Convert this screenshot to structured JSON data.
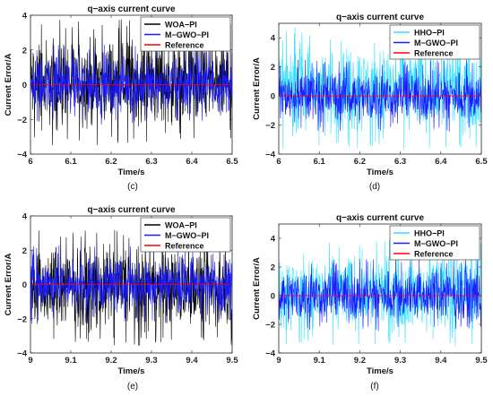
{
  "colors": {
    "woa": "#000000",
    "mgwo": "#1a1aff",
    "hho": "#33e0ff",
    "reference": "#ff0000",
    "axis": "#262626"
  },
  "chart_data": [
    {
      "type": "line",
      "panel_label": "(c)",
      "title": "q−axis current curve",
      "xlabel": "Time/s",
      "ylabel": "Current Error/A",
      "xlim": [
        6,
        6.5
      ],
      "ylim": [
        -4,
        4
      ],
      "xticks": [
        "6",
        "6.1",
        "6.2",
        "6.3",
        "6.4",
        "6.5"
      ],
      "yticks": [
        "−4",
        "−2",
        "0",
        "2",
        "4"
      ],
      "legend_position": "top-right",
      "series": [
        {
          "name": "WOA−PI",
          "color": "woa",
          "band": [
            -3.5,
            3.8
          ]
        },
        {
          "name": "M−GWO−PI",
          "color": "mgwo",
          "band": [
            -2.3,
            2.3
          ]
        },
        {
          "name": "Reference",
          "color": "reference",
          "value": 0
        }
      ]
    },
    {
      "type": "line",
      "panel_label": "(d)",
      "title": "q−axis current curve",
      "xlabel": "Time/s",
      "ylabel": "Current Error/A",
      "xlim": [
        6,
        6.5
      ],
      "ylim": [
        -4,
        5
      ],
      "xticks": [
        "6",
        "6.1",
        "6.2",
        "6.3",
        "6.4",
        "6.5"
      ],
      "yticks": [
        "−4",
        "−2",
        "0",
        "2",
        "4"
      ],
      "legend_position": "top-right",
      "series": [
        {
          "name": "HHO−PI",
          "color": "hho",
          "band": [
            -3.7,
            4.8
          ]
        },
        {
          "name": "M−GWO−PI",
          "color": "mgwo",
          "band": [
            -2.5,
            2.5
          ]
        },
        {
          "name": "Reference",
          "color": "reference",
          "value": 0
        }
      ]
    },
    {
      "type": "line",
      "panel_label": "(e)",
      "title": "q−axis current curve",
      "xlabel": "Time/s",
      "ylabel": "Current Error/A",
      "xlim": [
        9,
        9.5
      ],
      "ylim": [
        -4,
        4
      ],
      "xticks": [
        "9",
        "9.1",
        "9.2",
        "9.3",
        "9.4",
        "9.5"
      ],
      "yticks": [
        "−4",
        "−2",
        "0",
        "2",
        "4"
      ],
      "legend_position": "top-right",
      "series": [
        {
          "name": "WOA−PI",
          "color": "woa",
          "band": [
            -3.6,
            3.2
          ]
        },
        {
          "name": "M−GWO−PI",
          "color": "mgwo",
          "band": [
            -2.3,
            2.3
          ]
        },
        {
          "name": "Reference",
          "color": "reference",
          "value": 0
        }
      ]
    },
    {
      "type": "line",
      "panel_label": "(f)",
      "title": "q−axis current curve",
      "xlabel": "Time/s",
      "ylabel": "Current Error/A",
      "xlim": [
        9,
        9.5
      ],
      "ylim": [
        -4,
        5
      ],
      "xticks": [
        "9",
        "9.1",
        "9.2",
        "9.3",
        "9.4",
        "9.5"
      ],
      "yticks": [
        "−4",
        "−2",
        "0",
        "2",
        "4"
      ],
      "legend_position": "top-right",
      "series": [
        {
          "name": "HHO−PI",
          "color": "hho",
          "band": [
            -3.5,
            3.9
          ]
        },
        {
          "name": "M−GWO−PI",
          "color": "mgwo",
          "band": [
            -2.5,
            2.6
          ]
        },
        {
          "name": "Reference",
          "color": "reference",
          "value": 0
        }
      ]
    }
  ]
}
